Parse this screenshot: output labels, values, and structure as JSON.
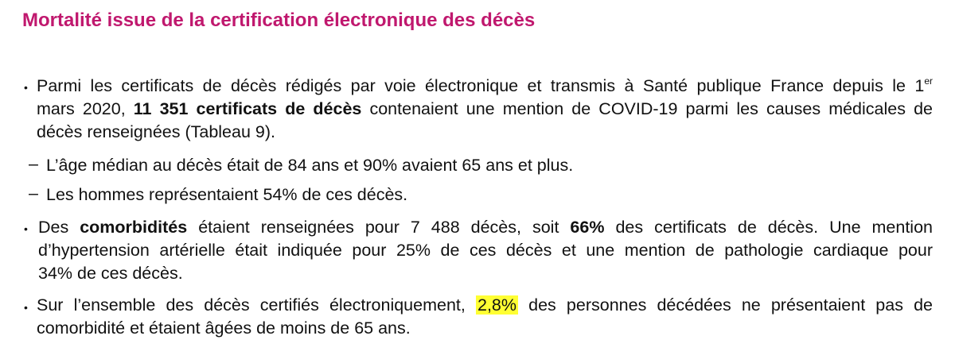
{
  "title": "Mortalité issue de la certification électronique des décès",
  "p1": {
    "l1": "Parmi les certificats de décès rédigés par voie électronique et transmis à Santé publique France depuis le 1",
    "sup": "er",
    "l2_a": "mars 2020, ",
    "l2_bold": "11 351 certificats de décès",
    "l2_b": " contenaient une mention de COVID-19 parmi les causes médicales de",
    "l3": "décès renseignées (Tableau 9)."
  },
  "sub1": "L’âge médian au décès était de 84 ans et 90% avaient 65 ans et plus.",
  "sub2": "Les hommes représentaient 54% de ces décès.",
  "dash": "–",
  "bullet": "•",
  "p2": {
    "l1_a": "Des ",
    "l1_bold1": "comorbidités",
    "l1_b": " étaient renseignées pour 7 488 décès, soit ",
    "l1_bold2": "66%",
    "l1_c": " des certificats de décès. Une mention",
    "l2": "d’hypertension artérielle était indiquée pour 25% de ces décès et une mention de pathologie cardiaque pour",
    "l3": "34% de ces décès."
  },
  "p3": {
    "l1_a": "Sur l’ensemble des décès certifiés électroniquement, ",
    "l1_hl": "2,8%",
    "l1_b": " des personnes décédées ne présentaient pas de",
    "l2": "comorbidité et étaient âgées de moins de 65 ans."
  }
}
